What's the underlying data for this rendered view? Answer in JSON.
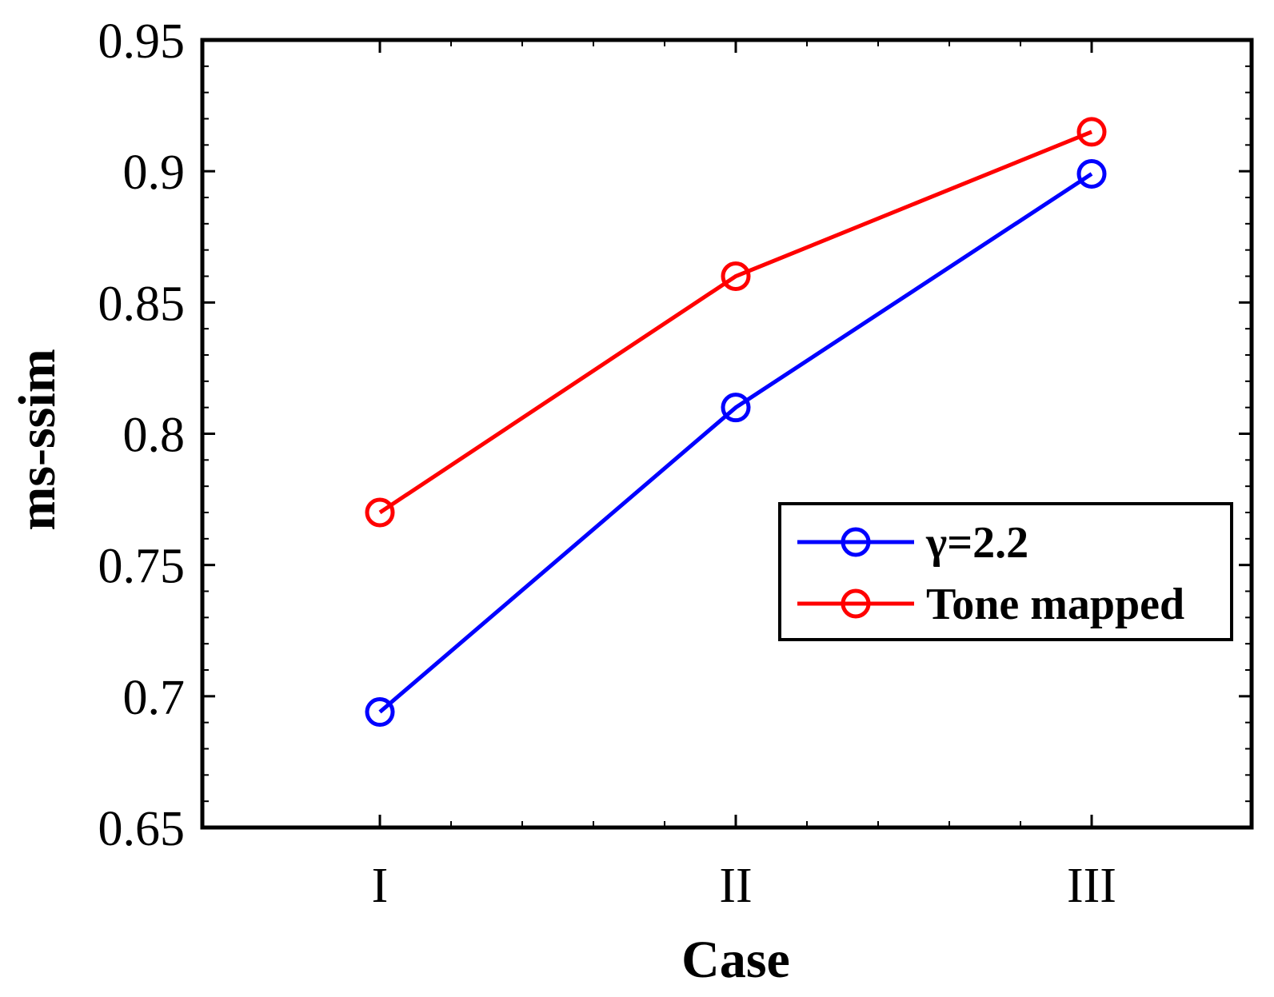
{
  "chart_data": {
    "type": "line",
    "title": "",
    "xlabel": "Case",
    "ylabel": "ms-ssim",
    "categories": [
      "I",
      "II",
      "III"
    ],
    "ylim": [
      0.65,
      0.95
    ],
    "yticks": [
      "0.65",
      "0.7",
      "0.75",
      "0.8",
      "0.85",
      "0.9",
      "0.95"
    ],
    "grid": false,
    "legend_position": "right",
    "series": [
      {
        "name": "γ=2.2",
        "values": [
          0.694,
          0.81,
          0.899
        ],
        "color": "#0000ff",
        "marker": "circle"
      },
      {
        "name": "Tone mapped",
        "values": [
          0.77,
          0.86,
          0.915
        ],
        "color": "#ff0000",
        "marker": "circle"
      }
    ]
  }
}
